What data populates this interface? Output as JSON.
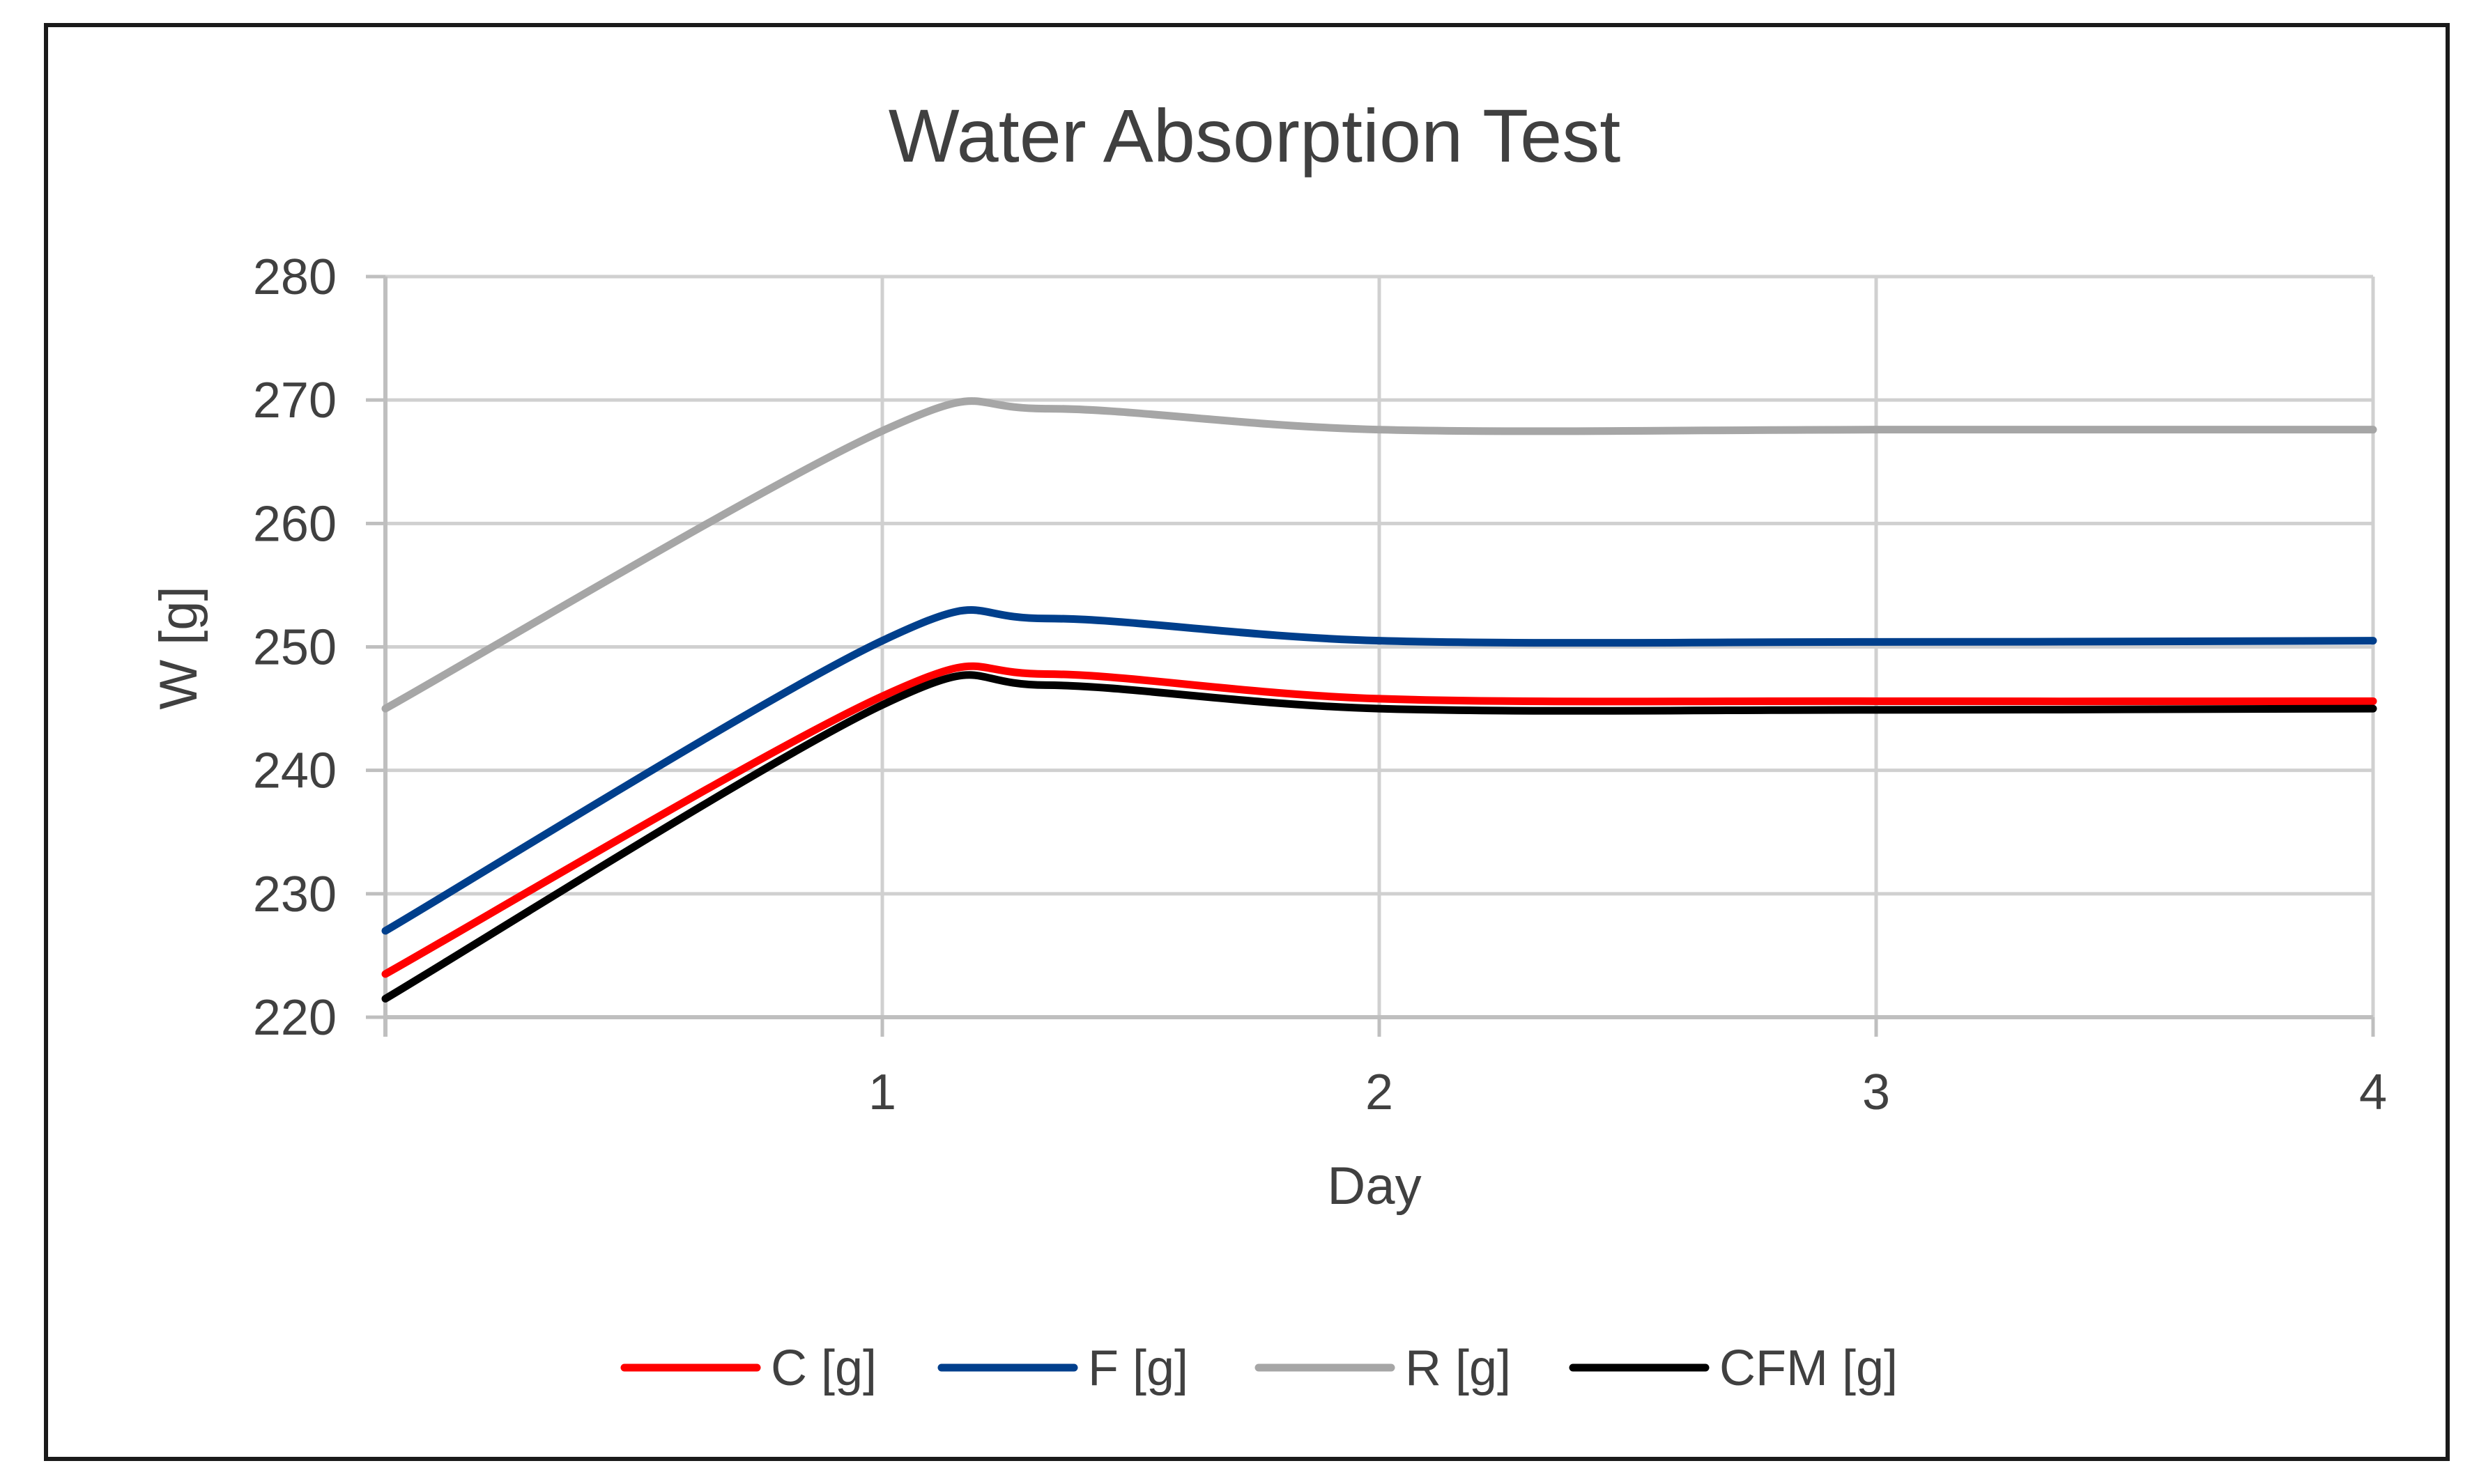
{
  "chart_data": {
    "type": "line",
    "title": "Water Absorption Test",
    "xlabel": "Day",
    "ylabel": "W [g]",
    "xlim": [
      0,
      4
    ],
    "ylim": [
      220,
      280
    ],
    "x_ticks": [
      1,
      2,
      3,
      4
    ],
    "y_ticks": [
      220,
      230,
      240,
      250,
      260,
      270,
      280
    ],
    "grid": true,
    "legend_position": "bottom",
    "series": [
      {
        "name": "C [g]",
        "color": "#ff0000",
        "x": [
          0,
          1,
          1.33,
          2,
          3,
          4
        ],
        "y": [
          223.5,
          246.0,
          247.8,
          245.8,
          245.6,
          245.6
        ]
      },
      {
        "name": "F [g]",
        "color": "#003f8c",
        "x": [
          0,
          1,
          1.33,
          2,
          3,
          4
        ],
        "y": [
          227.0,
          250.5,
          252.3,
          250.5,
          250.4,
          250.5
        ]
      },
      {
        "name": "R [g]",
        "color": "#a6a6a6",
        "x": [
          0,
          1,
          1.33,
          2,
          3,
          4
        ],
        "y": [
          245.0,
          267.5,
          269.3,
          267.6,
          267.6,
          267.6
        ]
      },
      {
        "name": "CFM [g]",
        "color": "#000000",
        "x": [
          0,
          1,
          1.33,
          2,
          3,
          4
        ],
        "y": [
          221.5,
          245.3,
          246.9,
          245.0,
          244.9,
          245.0
        ]
      }
    ]
  }
}
